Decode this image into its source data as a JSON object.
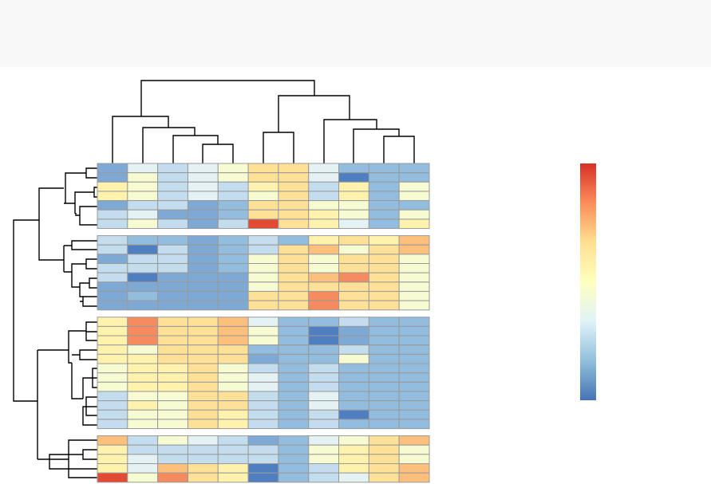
{
  "chart_data": {
    "type": "heatmap",
    "colorscale": [
      "#4575b4",
      "#91bfdb",
      "#e0f3f8",
      "#ffffbf",
      "#fee090",
      "#fc8d59",
      "#d73027"
    ],
    "groups": [
      [
        [
          "#7ea9d5",
          "#e4f2f4",
          "#c3ddee",
          "#e4f2f4",
          "#f6fbd2",
          "#fee196",
          "#fee196",
          "#e4f2f4",
          "#93bddf",
          "#93bddf",
          "#93bddf"
        ],
        [
          "#7ea9d5",
          "#f6fbd2",
          "#c3ddee",
          "#e4f2f4",
          "#f6fbd2",
          "#fee196",
          "#fee196",
          "#e4f2f4",
          "#4f7fc0",
          "#93bddf",
          "#93bddf"
        ],
        [
          "#fff2ad",
          "#f6fbd2",
          "#c3ddee",
          "#e4f2f4",
          "#c3ddee",
          "#fff2ad",
          "#fee196",
          "#c3ddee",
          "#fff2ad",
          "#93bddf",
          "#f6fbd2"
        ],
        [
          "#fff2ad",
          "#f6fbd2",
          "#c3ddee",
          "#e4f2f4",
          "#c3ddee",
          "#f6fbd2",
          "#fee196",
          "#c3ddee",
          "#fff2ad",
          "#93bddf",
          "#f6fbd2"
        ],
        [
          "#7ea9d5",
          "#c3ddee",
          "#c3ddee",
          "#7ea9d5",
          "#93bddf",
          "#fee196",
          "#fee196",
          "#f6fbd2",
          "#f6fbd2",
          "#93bddf",
          "#93bddf"
        ],
        [
          "#c3ddee",
          "#e4f2f4",
          "#7ea9d5",
          "#7ea9d5",
          "#93bddf",
          "#fee196",
          "#fee196",
          "#fff2ad",
          "#f6fbd2",
          "#93bddf",
          "#f6fbd2"
        ],
        [
          "#c3ddee",
          "#f6fbd2",
          "#c3ddee",
          "#7ea9d5",
          "#c3ddee",
          "#e34a33",
          "#fee196",
          "#fff2ad",
          "#e4f2f4",
          "#93bddf",
          "#fff2ad"
        ]
      ],
      [
        [
          "#c3ddee",
          "#93bddf",
          "#93bddf",
          "#7ea9d5",
          "#93bddf",
          "#c3ddee",
          "#93bddf",
          "#fff2ad",
          "#fee196",
          "#fff2ad",
          "#fdbf7c"
        ],
        [
          "#c3ddee",
          "#4f7fc0",
          "#c3ddee",
          "#7ea9d5",
          "#93bddf",
          "#c3ddee",
          "#fee196",
          "#fdbf7c",
          "#f6fbd2",
          "#fee196",
          "#fdbf7c"
        ],
        [
          "#7ea9d5",
          "#c3ddee",
          "#c3ddee",
          "#7ea9d5",
          "#93bddf",
          "#f6fbd2",
          "#fee196",
          "#f6fbd2",
          "#fee196",
          "#fee196",
          "#f6fbd2"
        ],
        [
          "#c3ddee",
          "#c3ddee",
          "#c3ddee",
          "#7ea9d5",
          "#93bddf",
          "#f6fbd2",
          "#fee196",
          "#f6fbd2",
          "#fee196",
          "#fee196",
          "#f6fbd2"
        ],
        [
          "#c3ddee",
          "#4f7fc0",
          "#7ea9d5",
          "#7ea9d5",
          "#7ea9d5",
          "#f6fbd2",
          "#fee196",
          "#fdbf7c",
          "#f68b5f",
          "#fee196",
          "#f6fbd2"
        ],
        [
          "#7ea9d5",
          "#7ea9d5",
          "#7ea9d5",
          "#7ea9d5",
          "#7ea9d5",
          "#f6fbd2",
          "#fee196",
          "#fee196",
          "#fee196",
          "#fee196",
          "#f6fbd2"
        ],
        [
          "#7ea9d5",
          "#93bddf",
          "#7ea9d5",
          "#7ea9d5",
          "#7ea9d5",
          "#fee196",
          "#fee196",
          "#f68b5f",
          "#fee196",
          "#fee196",
          "#f6fbd2"
        ],
        [
          "#7ea9d5",
          "#7ea9d5",
          "#7ea9d5",
          "#7ea9d5",
          "#7ea9d5",
          "#fee196",
          "#fee196",
          "#f68b5f",
          "#fee196",
          "#fee196",
          "#f6fbd2"
        ]
      ],
      [
        [
          "#fff2ad",
          "#f68b5f",
          "#fee196",
          "#fee196",
          "#fdbf7c",
          "#e4f2f4",
          "#93bddf",
          "#93bddf",
          "#c3ddee",
          "#93bddf",
          "#93bddf"
        ],
        [
          "#fff2ad",
          "#f68b5f",
          "#fee196",
          "#fee196",
          "#fdbf7c",
          "#f6fbd2",
          "#93bddf",
          "#4f7fc0",
          "#7ea9d5",
          "#93bddf",
          "#93bddf"
        ],
        [
          "#fff2ad",
          "#f68b5f",
          "#fee196",
          "#fee196",
          "#fdbf7c",
          "#f6fbd2",
          "#93bddf",
          "#4f7fc0",
          "#7ea9d5",
          "#93bddf",
          "#93bddf"
        ],
        [
          "#fff2ad",
          "#f6fbd2",
          "#fee196",
          "#fee196",
          "#fee196",
          "#93bddf",
          "#93bddf",
          "#93bddf",
          "#c3ddee",
          "#93bddf",
          "#93bddf"
        ],
        [
          "#fff2ad",
          "#fff2ad",
          "#fee196",
          "#fee196",
          "#fee196",
          "#7ea9d5",
          "#93bddf",
          "#93bddf",
          "#f6fbd2",
          "#93bddf",
          "#93bddf"
        ],
        [
          "#f6fbd2",
          "#fff2ad",
          "#fff2ad",
          "#fee196",
          "#f6fbd2",
          "#c3ddee",
          "#93bddf",
          "#c3ddee",
          "#93bddf",
          "#93bddf",
          "#93bddf"
        ],
        [
          "#f6fbd2",
          "#fff2ad",
          "#fff2ad",
          "#fee196",
          "#f6fbd2",
          "#e4f2f4",
          "#93bddf",
          "#c3ddee",
          "#93bddf",
          "#93bddf",
          "#93bddf"
        ],
        [
          "#f6fbd2",
          "#fff2ad",
          "#fff2ad",
          "#fee196",
          "#f6fbd2",
          "#e4f2f4",
          "#93bddf",
          "#c3ddee",
          "#93bddf",
          "#93bddf",
          "#93bddf"
        ],
        [
          "#c3ddee",
          "#f6fbd2",
          "#f6fbd2",
          "#fee196",
          "#fee196",
          "#c3ddee",
          "#93bddf",
          "#e4f2f4",
          "#93bddf",
          "#93bddf",
          "#93bddf"
        ],
        [
          "#c3ddee",
          "#fff2ad",
          "#f6fbd2",
          "#fee196",
          "#fee196",
          "#c3ddee",
          "#93bddf",
          "#e4f2f4",
          "#93bddf",
          "#93bddf",
          "#93bddf"
        ],
        [
          "#c3ddee",
          "#f6fbd2",
          "#f6fbd2",
          "#fee196",
          "#fff2ad",
          "#c3ddee",
          "#93bddf",
          "#c3ddee",
          "#4f7fc0",
          "#93bddf",
          "#93bddf"
        ],
        [
          "#c3ddee",
          "#f6fbd2",
          "#f6fbd2",
          "#fee196",
          "#fff2ad",
          "#c3ddee",
          "#93bddf",
          "#c3ddee",
          "#93bddf",
          "#93bddf",
          "#93bddf"
        ]
      ],
      [
        [
          "#fdbf7c",
          "#c3ddee",
          "#f6fbd2",
          "#e4f2f4",
          "#c3ddee",
          "#7ea9d5",
          "#93bddf",
          "#e4f2f4",
          "#f6fbd2",
          "#fee196",
          "#fdbf7c"
        ],
        [
          "#fff2ad",
          "#c3ddee",
          "#c3ddee",
          "#c3ddee",
          "#c3ddee",
          "#c3ddee",
          "#93bddf",
          "#f6fbd2",
          "#fff2ad",
          "#fee196",
          "#f6fbd2"
        ],
        [
          "#fff2ad",
          "#e4f2f4",
          "#c3ddee",
          "#c3ddee",
          "#c3ddee",
          "#c3ddee",
          "#93bddf",
          "#f6fbd2",
          "#fff2ad",
          "#fee196",
          "#f6fbd2"
        ],
        [
          "#fff2ad",
          "#e4f2f4",
          "#fdbf7c",
          "#fee196",
          "#fff2ad",
          "#4f7fc0",
          "#93bddf",
          "#c3ddee",
          "#fff2ad",
          "#fee196",
          "#fdbf7c"
        ],
        [
          "#e34a33",
          "#f6fbd2",
          "#f68b5f",
          "#fee196",
          "#fff2ad",
          "#4f7fc0",
          "#93bddf",
          "#c3ddee",
          "#e4f2f4",
          "#fee196",
          "#fdbf7c"
        ]
      ]
    ]
  }
}
